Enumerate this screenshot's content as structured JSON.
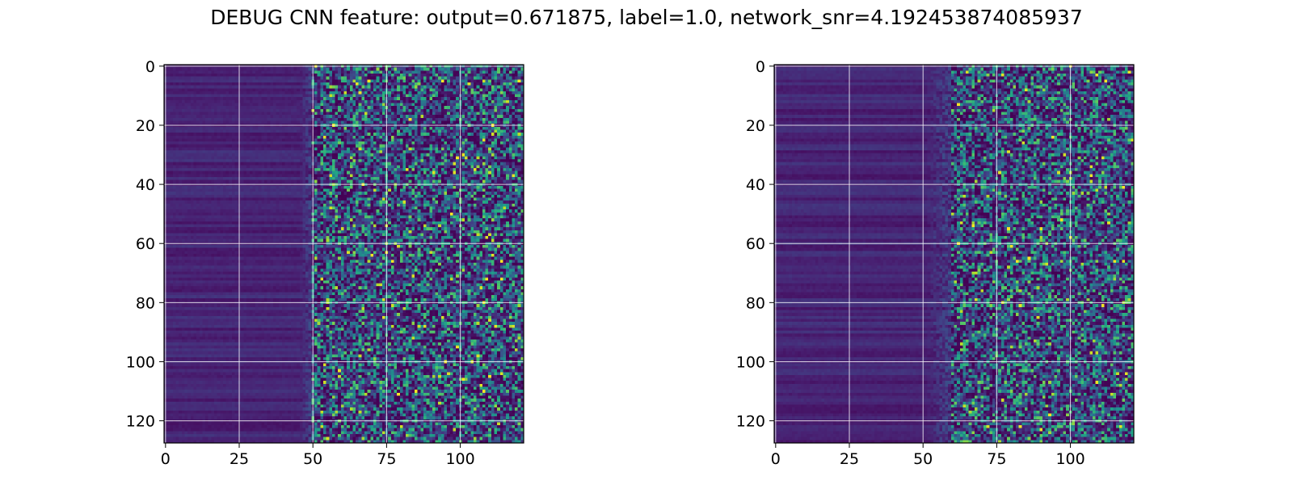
{
  "title": "DEBUG CNN feature: output=0.671875, label=1.0, network_snr=4.192453874085937",
  "colors": {
    "colormap": "viridis",
    "grid": "#ffffff",
    "axes": "#000000",
    "background": "#ffffff"
  },
  "chart_data": [
    {
      "type": "heatmap",
      "title": "",
      "xlabel": "",
      "ylabel": "",
      "xlim": [
        -0.5,
        121.5
      ],
      "ylim": [
        127.5,
        -0.5
      ],
      "xticks": [
        0,
        25,
        50,
        75,
        100
      ],
      "yticks": [
        0,
        20,
        40,
        60,
        80,
        100,
        120
      ],
      "grid": true,
      "legend": "none",
      "rows": 128,
      "cols": 122,
      "value_range": [
        0,
        1
      ],
      "description_of_values": {
        "low_region_cols": [
          0,
          45
        ],
        "noisy_region_cols": [
          50,
          121
        ]
      },
      "seed": 11
    },
    {
      "type": "heatmap",
      "title": "",
      "xlabel": "",
      "ylabel": "",
      "xlim": [
        -0.5,
        121.5
      ],
      "ylim": [
        127.5,
        -0.5
      ],
      "xticks": [
        0,
        25,
        50,
        75,
        100
      ],
      "yticks": [
        0,
        20,
        40,
        60,
        80,
        100,
        120
      ],
      "grid": true,
      "legend": "none",
      "rows": 128,
      "cols": 122,
      "value_range": [
        0,
        1
      ],
      "description_of_values": {
        "low_region_cols": [
          0,
          50
        ],
        "noisy_region_cols": [
          60,
          121
        ]
      },
      "seed": 29
    }
  ]
}
